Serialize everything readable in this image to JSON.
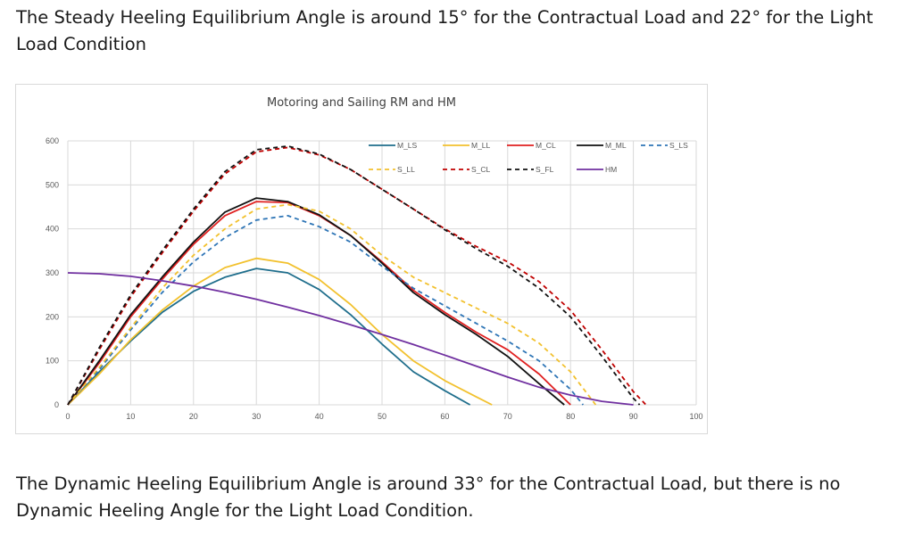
{
  "text": {
    "steady": "The Steady Heeling Equilibrium Angle is around 15° for the Contractual Load and 22° for the Light Load Condition",
    "dynamic": "The Dynamic Heeling Equilibrium Angle is around 33° for the Contractual Load, but there is no Dynamic Heeling Angle for the Light Load Condition."
  },
  "chart_data": {
    "type": "line",
    "title": "Motoring and Sailing RM and HM",
    "xlabel": "",
    "ylabel": "",
    "xlim": [
      0,
      100
    ],
    "ylim": [
      0,
      600
    ],
    "x_ticks": [
      0,
      10,
      20,
      30,
      40,
      50,
      60,
      70,
      80,
      90,
      100
    ],
    "y_ticks": [
      0,
      100,
      200,
      300,
      400,
      500,
      600
    ],
    "grid": true,
    "legend_position": "top-right",
    "series": [
      {
        "name": "M_LS",
        "color": "#1f6e8c",
        "dash": "solid",
        "x": [
          0,
          5,
          10,
          15,
          20,
          25,
          30,
          35,
          40,
          45,
          50,
          55,
          60,
          64
        ],
        "y": [
          0,
          75,
          145,
          210,
          258,
          290,
          310,
          300,
          262,
          205,
          138,
          75,
          32,
          0
        ]
      },
      {
        "name": "M_LL",
        "color": "#f2c12e",
        "dash": "solid",
        "x": [
          0,
          5,
          10,
          15,
          20,
          25,
          30,
          35,
          40,
          45,
          50,
          55,
          60,
          65,
          67.5
        ],
        "y": [
          0,
          70,
          148,
          215,
          270,
          312,
          333,
          322,
          285,
          228,
          160,
          100,
          55,
          18,
          0
        ]
      },
      {
        "name": "M_CL",
        "color": "#e02020",
        "dash": "solid",
        "x": [
          0,
          5,
          10,
          15,
          20,
          25,
          30,
          35,
          40,
          45,
          50,
          55,
          60,
          65,
          70,
          75,
          80
        ],
        "y": [
          0,
          95,
          200,
          285,
          365,
          430,
          462,
          460,
          430,
          385,
          325,
          260,
          210,
          165,
          125,
          70,
          0
        ]
      },
      {
        "name": "M_ML",
        "color": "#111111",
        "dash": "solid",
        "x": [
          0,
          5,
          10,
          15,
          20,
          25,
          30,
          35,
          40,
          45,
          50,
          55,
          60,
          65,
          70,
          75,
          79
        ],
        "y": [
          0,
          100,
          205,
          290,
          370,
          438,
          470,
          462,
          432,
          385,
          322,
          255,
          205,
          160,
          110,
          48,
          0
        ]
      },
      {
        "name": "S_LS",
        "color": "#2e75b6",
        "dash": "dash",
        "x": [
          0,
          5,
          10,
          15,
          20,
          25,
          30,
          35,
          40,
          45,
          50,
          55,
          60,
          65,
          70,
          75,
          80,
          82
        ],
        "y": [
          0,
          80,
          170,
          255,
          325,
          380,
          420,
          430,
          405,
          370,
          315,
          265,
          225,
          185,
          145,
          100,
          35,
          0
        ]
      },
      {
        "name": "S_LL",
        "color": "#f2c12e",
        "dash": "dash",
        "x": [
          0,
          5,
          10,
          15,
          20,
          25,
          30,
          35,
          40,
          45,
          50,
          55,
          60,
          65,
          70,
          75,
          80,
          84
        ],
        "y": [
          0,
          85,
          175,
          265,
          340,
          400,
          445,
          455,
          440,
          400,
          340,
          290,
          255,
          220,
          185,
          140,
          75,
          0
        ]
      },
      {
        "name": "S_CL",
        "color": "#c00000",
        "dash": "dash",
        "x": [
          0,
          5,
          10,
          15,
          20,
          25,
          30,
          35,
          40,
          45,
          50,
          55,
          60,
          65,
          70,
          75,
          80,
          85,
          90,
          92
        ],
        "y": [
          0,
          125,
          245,
          345,
          440,
          525,
          575,
          585,
          568,
          535,
          490,
          445,
          400,
          360,
          325,
          280,
          215,
          125,
          30,
          0
        ]
      },
      {
        "name": "S_FL",
        "color": "#111111",
        "dash": "dash",
        "x": [
          0,
          5,
          10,
          15,
          20,
          25,
          30,
          35,
          40,
          45,
          50,
          55,
          60,
          65,
          70,
          75,
          80,
          85,
          90,
          91
        ],
        "y": [
          0,
          130,
          250,
          350,
          445,
          530,
          580,
          588,
          570,
          535,
          490,
          445,
          398,
          355,
          315,
          265,
          200,
          110,
          15,
          0
        ]
      },
      {
        "name": "HM",
        "color": "#7030a0",
        "dash": "solid",
        "x": [
          0,
          5,
          10,
          15,
          20,
          25,
          30,
          35,
          40,
          45,
          50,
          55,
          60,
          65,
          70,
          75,
          80,
          85,
          90
        ],
        "y": [
          300,
          298,
          292,
          282,
          270,
          256,
          240,
          222,
          203,
          182,
          160,
          137,
          113,
          88,
          63,
          40,
          22,
          8,
          0
        ]
      }
    ]
  }
}
